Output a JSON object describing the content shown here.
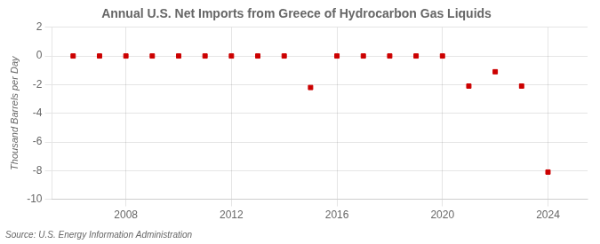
{
  "chart_data": {
    "type": "scatter",
    "title": "Annual U.S. Net Imports from Greece of Hydrocarbon Gas Liquids",
    "ylabel": "Thousand Barrels per Day",
    "source": "Source: U.S. Energy Information Administration",
    "x": [
      2006,
      2007,
      2008,
      2009,
      2010,
      2011,
      2012,
      2013,
      2014,
      2015,
      2016,
      2017,
      2018,
      2019,
      2020,
      2021,
      2022,
      2023,
      2024
    ],
    "values": [
      0,
      0,
      0,
      0,
      0,
      0,
      0,
      0,
      0,
      -2.2,
      0,
      0,
      0,
      0,
      0,
      -2.1,
      -1.1,
      -2.1,
      -8.1
    ],
    "color": "#cc0000",
    "marker": "square",
    "xlim": [
      2005.2,
      2025.5
    ],
    "xticks": [
      2008,
      2012,
      2016,
      2020,
      2024
    ],
    "ylim": [
      -10,
      2
    ],
    "yticks": [
      -10,
      -8,
      -6,
      -4,
      -2,
      0,
      2
    ],
    "grid": true
  }
}
